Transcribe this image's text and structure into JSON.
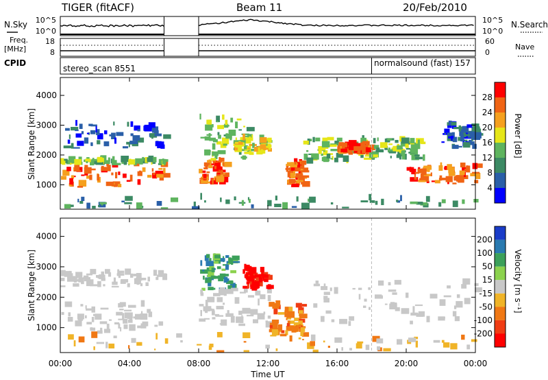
{
  "header": {
    "title": "TIGER (fitACF)",
    "beam": "Beam 11",
    "date": "20/Feb/2010"
  },
  "strip_labels": {
    "nsky": "N.Sky",
    "nsearch": "N.Search",
    "freq_line1": "Freq.",
    "freq_line2": "[MHz]",
    "nave": "Nave",
    "cpid": "CPID"
  },
  "strip_ticks": {
    "nsky_top": "10^5",
    "nsky_bottom": "10^0",
    "nsearch_top": "10^5",
    "nsearch_bottom": "10^0",
    "freq_top": "18",
    "freq_bottom": "8",
    "nave_top": "60",
    "nave_bottom": "0"
  },
  "cpid": {
    "mode1": "stereo_scan 8551",
    "mode2": "normalsound (fast) 157",
    "mode2_start_hour": 18
  },
  "colors": {
    "power_scale": [
      "#0000ff",
      "#2a5fa8",
      "#3c8a64",
      "#5fb45f",
      "#e6e619",
      "#f5a01e",
      "#f06414",
      "#ff0000"
    ],
    "velocity_scale": [
      "#1a3cc8",
      "#2a7ab0",
      "#3ca05a",
      "#8cd24e",
      "#c8c8c8",
      "#f0b428",
      "#f07814",
      "#f03c14",
      "#ff0000"
    ],
    "ground_scatter": "#c8c8c8"
  },
  "chart_data": [
    {
      "type": "heatmap",
      "name": "power",
      "ylabel": "Slant Range [km]",
      "ylim": [
        180,
        4600
      ],
      "xlim_hours": [
        0,
        24
      ],
      "yticks": [
        "1000",
        "2000",
        "3000",
        "4000"
      ],
      "colorbar_label": "Power [dB]",
      "colorbar_ticks": [
        "4",
        "8",
        "12",
        "16",
        "20",
        "24",
        "28"
      ],
      "colorbar_range": [
        0,
        32
      ],
      "data_gap_hours": [
        6,
        8
      ],
      "regions": [
        {
          "t0": 0.0,
          "t1": 6.0,
          "r0": 900,
          "r1": 1650,
          "value": 27
        },
        {
          "t0": 0.0,
          "t1": 6.0,
          "r0": 1650,
          "r1": 1800,
          "value": 12
        },
        {
          "t0": 0.0,
          "t1": 6.0,
          "r0": 2200,
          "r1": 3000,
          "value": 6
        },
        {
          "t0": 8.0,
          "t1": 9.5,
          "r0": 1000,
          "r1": 1800,
          "value": 24
        },
        {
          "t0": 8.0,
          "t1": 11.0,
          "r0": 1800,
          "r1": 3200,
          "value": 14
        },
        {
          "t0": 10.0,
          "t1": 12.0,
          "r0": 2000,
          "r1": 2500,
          "value": 18
        },
        {
          "t0": 13.0,
          "t1": 14.0,
          "r0": 900,
          "r1": 1700,
          "value": 25
        },
        {
          "t0": 14.0,
          "t1": 18.0,
          "r0": 1700,
          "r1": 2500,
          "value": 14
        },
        {
          "t0": 16.0,
          "t1": 18.0,
          "r0": 2000,
          "r1": 2300,
          "value": 24
        },
        {
          "t0": 18.0,
          "t1": 21.0,
          "r0": 1800,
          "r1": 2500,
          "value": 12
        },
        {
          "t0": 20.0,
          "t1": 24.0,
          "r0": 1000,
          "r1": 1600,
          "value": 26
        },
        {
          "t0": 22.0,
          "t1": 24.0,
          "r0": 2200,
          "r1": 3000,
          "value": 6
        },
        {
          "t0": 0.0,
          "t1": 24.0,
          "r0": 180,
          "r1": 500,
          "value": 10
        }
      ]
    },
    {
      "type": "heatmap",
      "name": "velocity",
      "ylabel": "Slant Range [km]",
      "xlabel": "Time UT",
      "ylim": [
        180,
        4600
      ],
      "xlim_hours": [
        0,
        24
      ],
      "yticks": [
        "1000",
        "2000",
        "3000",
        "4000"
      ],
      "xticks": [
        "00:00",
        "04:00",
        "08:00",
        "12:00",
        "16:00",
        "20:00",
        "00:00"
      ],
      "colorbar_label": "Velocity [m s⁻¹]",
      "colorbar_ticks": [
        "200",
        "100",
        "50",
        "15",
        "-15",
        "-50",
        "-100",
        "-200"
      ],
      "data_gap_hours": [
        6,
        8
      ],
      "regions": [
        {
          "t0": 0.0,
          "t1": 6.0,
          "r0": 800,
          "r1": 1700,
          "kind": "ground"
        },
        {
          "t0": 0.0,
          "t1": 6.0,
          "r0": 2300,
          "r1": 2800,
          "kind": "ground"
        },
        {
          "t0": 8.0,
          "t1": 10.0,
          "r0": 2200,
          "r1": 3300,
          "value": 100
        },
        {
          "t0": 8.0,
          "t1": 12.0,
          "r0": 1000,
          "r1": 2200,
          "kind": "ground"
        },
        {
          "t0": 10.5,
          "t1": 12.0,
          "r0": 2200,
          "r1": 2900,
          "value": -200
        },
        {
          "t0": 12.0,
          "t1": 14.0,
          "r0": 700,
          "r1": 1700,
          "value": -80
        },
        {
          "t0": 14.0,
          "t1": 24.0,
          "r0": 1000,
          "r1": 2500,
          "kind": "ground"
        },
        {
          "t0": 0.0,
          "t1": 24.0,
          "r0": 180,
          "r1": 700,
          "value": -40
        }
      ]
    }
  ]
}
